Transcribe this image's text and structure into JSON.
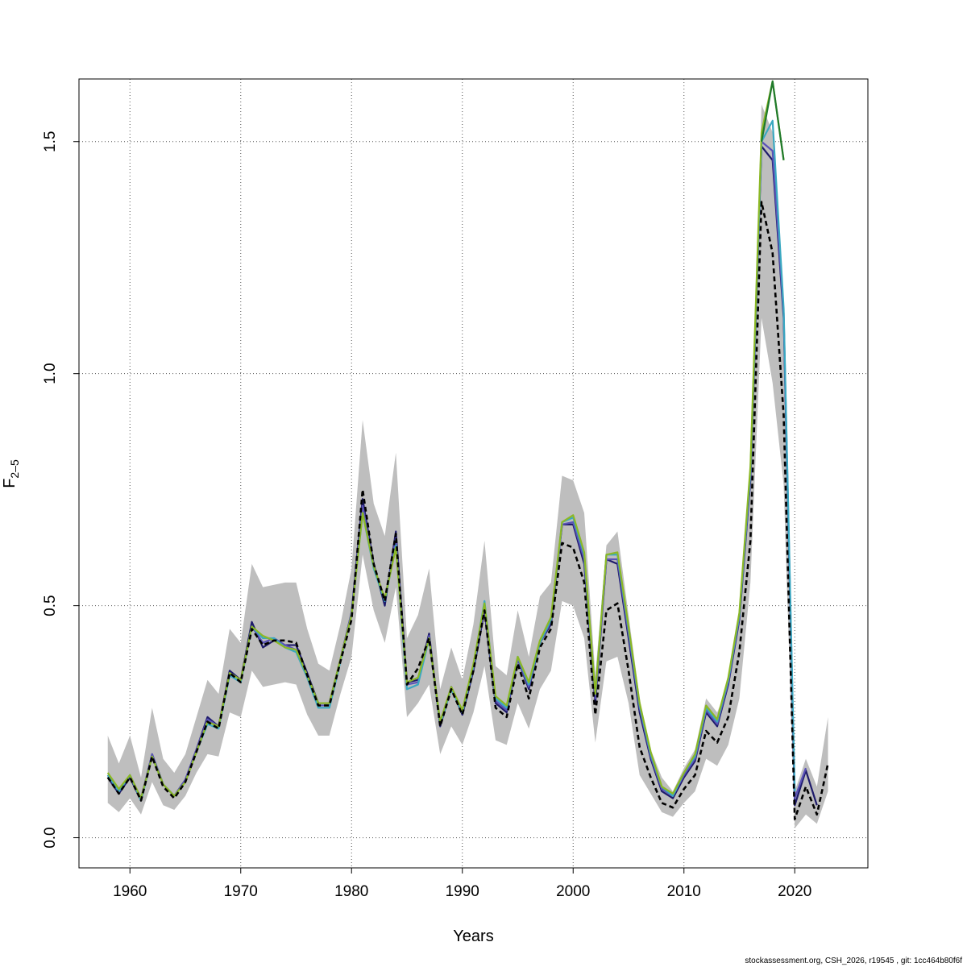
{
  "footer": "stockassessment.org, CSH_2026, r19545 , git: 1cc464b80f6f",
  "chart_data": {
    "type": "line",
    "title": "",
    "xlabel": "Years",
    "ylabel_main": "F",
    "ylabel_sub": "2–5",
    "xlim": [
      1955.4,
      2026.6
    ],
    "ylim": [
      -0.065,
      1.635
    ],
    "x_ticks": [
      1960,
      1970,
      1980,
      1990,
      2000,
      2010,
      2020
    ],
    "y_ticks": [
      0.0,
      0.5,
      1.0,
      1.5
    ],
    "y_tick_labels": [
      "0.0",
      "0.5",
      "1.0",
      "1.5"
    ],
    "grid": true,
    "band_color": "#bebebe",
    "band": {
      "x": [
        1958,
        1959,
        1960,
        1961,
        1962,
        1963,
        1964,
        1965,
        1966,
        1967,
        1968,
        1969,
        1970,
        1971,
        1972,
        1973,
        1974,
        1975,
        1976,
        1977,
        1978,
        1979,
        1980,
        1981,
        1982,
        1983,
        1984,
        1985,
        1986,
        1987,
        1988,
        1989,
        1990,
        1991,
        1992,
        1993,
        1994,
        1995,
        1996,
        1997,
        1998,
        1999,
        2000,
        2001,
        2002,
        2003,
        2004,
        2005,
        2006,
        2007,
        2008,
        2009,
        2010,
        2011,
        2012,
        2013,
        2014,
        2015,
        2016,
        2017,
        2018,
        2019,
        2020,
        2021,
        2022,
        2023
      ],
      "upper": [
        0.22,
        0.16,
        0.22,
        0.13,
        0.28,
        0.17,
        0.14,
        0.18,
        0.26,
        0.34,
        0.31,
        0.45,
        0.42,
        0.59,
        0.54,
        0.545,
        0.55,
        0.55,
        0.45,
        0.375,
        0.36,
        0.46,
        0.58,
        0.9,
        0.72,
        0.65,
        0.83,
        0.43,
        0.48,
        0.58,
        0.32,
        0.41,
        0.34,
        0.46,
        0.64,
        0.37,
        0.35,
        0.49,
        0.39,
        0.52,
        0.55,
        0.78,
        0.77,
        0.7,
        0.35,
        0.63,
        0.66,
        0.48,
        0.3,
        0.19,
        0.13,
        0.1,
        0.15,
        0.19,
        0.3,
        0.27,
        0.33,
        0.46,
        0.74,
        1.58,
        1.52,
        1.15,
        0.1,
        0.17,
        0.11,
        0.26
      ],
      "lower": [
        0.075,
        0.055,
        0.085,
        0.05,
        0.12,
        0.07,
        0.06,
        0.09,
        0.14,
        0.18,
        0.175,
        0.27,
        0.26,
        0.36,
        0.325,
        0.33,
        0.335,
        0.33,
        0.265,
        0.22,
        0.22,
        0.31,
        0.39,
        0.61,
        0.49,
        0.42,
        0.54,
        0.26,
        0.29,
        0.33,
        0.18,
        0.24,
        0.2,
        0.27,
        0.37,
        0.21,
        0.2,
        0.29,
        0.235,
        0.32,
        0.36,
        0.51,
        0.5,
        0.43,
        0.205,
        0.38,
        0.39,
        0.29,
        0.135,
        0.095,
        0.055,
        0.045,
        0.075,
        0.1,
        0.17,
        0.155,
        0.2,
        0.3,
        0.55,
        1.12,
        0.98,
        0.76,
        0.02,
        0.05,
        0.03,
        0.1
      ]
    },
    "series": [
      {
        "color": "#1e1b6b",
        "dashed": false,
        "x": [
          1958,
          1959,
          1960,
          1961,
          1962,
          1963,
          1964,
          1965,
          1966,
          1967,
          1968,
          1969,
          1970,
          1971,
          1972,
          1973,
          1974,
          1975,
          1976,
          1977,
          1978,
          1979,
          1980,
          1981,
          1982,
          1983,
          1984,
          1985,
          1986,
          1987,
          1988,
          1989,
          1990,
          1991,
          1992,
          1993,
          1994,
          1995,
          1996,
          1997,
          1998,
          1999,
          2000,
          2001,
          2002,
          2003,
          2004,
          2005,
          2006,
          2007,
          2008,
          2009,
          2010,
          2011,
          2012,
          2013,
          2014,
          2015,
          2016,
          2017,
          2018,
          2019,
          2020,
          2021,
          2022
        ],
        "y": [
          0.13,
          0.095,
          0.13,
          0.08,
          0.18,
          0.115,
          0.09,
          0.125,
          0.19,
          0.26,
          0.24,
          0.36,
          0.34,
          0.465,
          0.41,
          0.425,
          0.415,
          0.415,
          0.355,
          0.29,
          0.29,
          0.385,
          0.485,
          0.73,
          0.59,
          0.5,
          0.66,
          0.335,
          0.34,
          0.44,
          0.24,
          0.325,
          0.265,
          0.36,
          0.49,
          0.29,
          0.27,
          0.385,
          0.32,
          0.42,
          0.46,
          0.675,
          0.675,
          0.59,
          0.29,
          0.6,
          0.59,
          0.43,
          0.27,
          0.17,
          0.1,
          0.085,
          0.13,
          0.165,
          0.27,
          0.24,
          0.33,
          0.47,
          0.77,
          1.49,
          1.46,
          1.12,
          0.07,
          0.145,
          0.07
        ]
      },
      {
        "color": "#5a52b8",
        "dashed": false,
        "x": [
          1958,
          1959,
          1960,
          1961,
          1962,
          1963,
          1964,
          1965,
          1966,
          1967,
          1968,
          1969,
          1970,
          1971,
          1972,
          1973,
          1974,
          1975,
          1976,
          1977,
          1978,
          1979,
          1980,
          1981,
          1982,
          1983,
          1984,
          1985,
          1986,
          1987,
          1988,
          1989,
          1990,
          1991,
          1992,
          1993,
          1994,
          1995,
          1996,
          1997,
          1998,
          1999,
          2000,
          2001,
          2002,
          2003,
          2004,
          2005,
          2006,
          2007,
          2008,
          2009,
          2010,
          2011,
          2012,
          2013,
          2014,
          2015,
          2016,
          2017,
          2018,
          2019,
          2020,
          2021
        ],
        "y": [
          0.135,
          0.1,
          0.135,
          0.085,
          0.18,
          0.115,
          0.09,
          0.125,
          0.19,
          0.255,
          0.24,
          0.355,
          0.34,
          0.455,
          0.42,
          0.43,
          0.415,
          0.405,
          0.35,
          0.285,
          0.285,
          0.385,
          0.485,
          0.715,
          0.585,
          0.51,
          0.645,
          0.33,
          0.335,
          0.435,
          0.245,
          0.325,
          0.27,
          0.365,
          0.5,
          0.295,
          0.275,
          0.385,
          0.325,
          0.42,
          0.465,
          0.675,
          0.68,
          0.6,
          0.3,
          0.6,
          0.6,
          0.44,
          0.28,
          0.175,
          0.105,
          0.09,
          0.135,
          0.17,
          0.275,
          0.245,
          0.335,
          0.475,
          0.78,
          1.5,
          1.48,
          1.13,
          0.085,
          0.15
        ]
      },
      {
        "color": "#3aa8c1",
        "dashed": false,
        "x": [
          1958,
          1959,
          1960,
          1961,
          1962,
          1963,
          1964,
          1965,
          1966,
          1967,
          1968,
          1969,
          1970,
          1971,
          1972,
          1973,
          1974,
          1975,
          1976,
          1977,
          1978,
          1979,
          1980,
          1981,
          1982,
          1983,
          1984,
          1985,
          1986,
          1987,
          1988,
          1989,
          1990,
          1991,
          1992,
          1993,
          1994,
          1995,
          1996,
          1997,
          1998,
          1999,
          2000,
          2001,
          2002,
          2003,
          2004,
          2005,
          2006,
          2007,
          2008,
          2009,
          2010,
          2011,
          2012,
          2013,
          2014,
          2015,
          2016,
          2017,
          2018,
          2019,
          2020
        ],
        "y": [
          0.135,
          0.1,
          0.135,
          0.08,
          0.175,
          0.115,
          0.09,
          0.12,
          0.185,
          0.245,
          0.235,
          0.35,
          0.335,
          0.455,
          0.43,
          0.43,
          0.41,
          0.4,
          0.345,
          0.28,
          0.28,
          0.38,
          0.48,
          0.7,
          0.58,
          0.51,
          0.63,
          0.32,
          0.33,
          0.43,
          0.245,
          0.32,
          0.27,
          0.37,
          0.51,
          0.3,
          0.28,
          0.39,
          0.33,
          0.42,
          0.47,
          0.68,
          0.69,
          0.61,
          0.31,
          0.61,
          0.61,
          0.45,
          0.285,
          0.18,
          0.11,
          0.09,
          0.14,
          0.175,
          0.28,
          0.25,
          0.34,
          0.48,
          0.79,
          1.5,
          1.545,
          1.14,
          0.1
        ]
      },
      {
        "color": "#8cb825",
        "dashed": false,
        "x": [
          1958,
          1959,
          1960,
          1961,
          1962,
          1963,
          1964,
          1965,
          1966,
          1967,
          1968,
          1969,
          1970,
          1971,
          1972,
          1973,
          1974,
          1975,
          1976,
          1977,
          1978,
          1979,
          1980,
          1981,
          1982,
          1983,
          1984,
          1985,
          1986,
          1987,
          1988,
          1989,
          1990,
          1991,
          1992,
          1993,
          1994,
          1995,
          1996,
          1997,
          1998,
          1999,
          2000,
          2001,
          2002,
          2003,
          2004,
          2005,
          2006,
          2007,
          2008,
          2009,
          2010,
          2011,
          2012,
          2013,
          2014,
          2015,
          2016,
          2017,
          2018,
          2019
        ],
        "y": [
          0.14,
          0.105,
          0.135,
          0.085,
          0.175,
          0.115,
          0.09,
          0.12,
          0.185,
          0.25,
          0.24,
          0.355,
          0.34,
          0.455,
          0.435,
          0.425,
          0.41,
          0.405,
          0.35,
          0.29,
          0.29,
          0.385,
          0.48,
          0.7,
          0.585,
          0.515,
          0.625,
          0.335,
          0.345,
          0.43,
          0.25,
          0.325,
          0.275,
          0.375,
          0.505,
          0.305,
          0.285,
          0.39,
          0.335,
          0.425,
          0.475,
          0.68,
          0.695,
          0.615,
          0.31,
          0.61,
          0.615,
          0.455,
          0.29,
          0.185,
          0.11,
          0.095,
          0.14,
          0.18,
          0.285,
          0.255,
          0.345,
          0.485,
          0.8,
          1.52,
          1.63,
          1.46
        ]
      },
      {
        "color": "#1f7a2c",
        "dashed": false,
        "x": [
          2017,
          2018,
          2019
        ],
        "y": [
          1.5,
          1.63,
          1.46
        ]
      },
      {
        "color": "#000000",
        "dashed": true,
        "x": [
          1958,
          1959,
          1960,
          1961,
          1962,
          1963,
          1964,
          1965,
          1966,
          1967,
          1968,
          1969,
          1970,
          1971,
          1972,
          1973,
          1974,
          1975,
          1976,
          1977,
          1978,
          1979,
          1980,
          1981,
          1982,
          1983,
          1984,
          1985,
          1986,
          1987,
          1988,
          1989,
          1990,
          1991,
          1992,
          1993,
          1994,
          1995,
          1996,
          1997,
          1998,
          1999,
          2000,
          2001,
          2002,
          2003,
          2004,
          2005,
          2006,
          2007,
          2008,
          2009,
          2010,
          2011,
          2012,
          2013,
          2014,
          2015,
          2016,
          2017,
          2018,
          2019,
          2020,
          2021,
          2022,
          2023
        ],
        "y": [
          0.13,
          0.095,
          0.13,
          0.08,
          0.175,
          0.11,
          0.085,
          0.12,
          0.185,
          0.25,
          0.235,
          0.355,
          0.335,
          0.45,
          0.415,
          0.425,
          0.425,
          0.42,
          0.35,
          0.285,
          0.285,
          0.38,
          0.47,
          0.75,
          0.59,
          0.51,
          0.655,
          0.33,
          0.365,
          0.43,
          0.24,
          0.32,
          0.265,
          0.36,
          0.49,
          0.28,
          0.26,
          0.375,
          0.3,
          0.41,
          0.45,
          0.635,
          0.625,
          0.55,
          0.265,
          0.49,
          0.505,
          0.36,
          0.195,
          0.13,
          0.075,
          0.065,
          0.105,
          0.135,
          0.23,
          0.205,
          0.26,
          0.4,
          0.64,
          1.37,
          1.26,
          0.91,
          0.04,
          0.11,
          0.05,
          0.16
        ]
      }
    ]
  }
}
